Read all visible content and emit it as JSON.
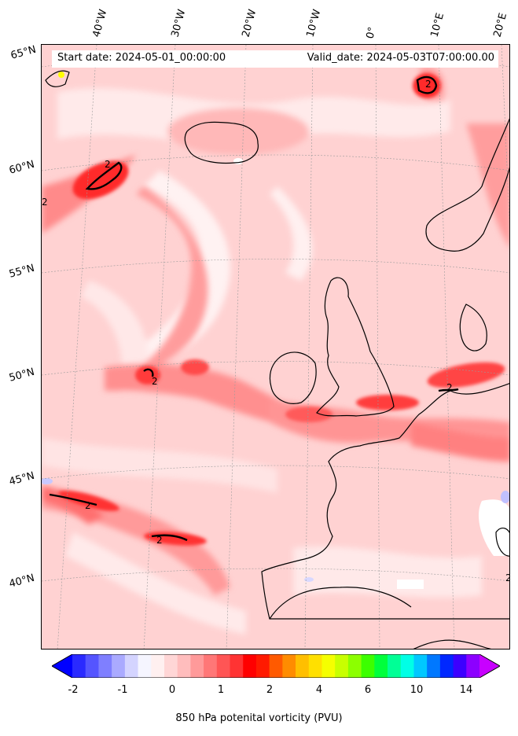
{
  "map": {
    "start_date": "Start date: 2024-05-01_00:00:00",
    "valid_date": "Valid_date: 2024-05-03T07:00:00.00",
    "lon_labels": [
      "40°W",
      "30°W",
      "20°W",
      "10°W",
      "0°",
      "10°E",
      "20°E"
    ],
    "lat_labels": [
      "65°N",
      "60°N",
      "55°N",
      "50°N",
      "45°N",
      "40°N"
    ],
    "contour_labels": [
      "2",
      "2",
      "2",
      "2",
      "2",
      "2",
      "2",
      "2"
    ],
    "colorbar": {
      "label": "850 hPa potenital vorticity (PVU)",
      "ticks": [
        "-2",
        "-1",
        "0",
        "1",
        "2",
        "4",
        "6",
        "10",
        "14"
      ],
      "colors": [
        "#0000ff",
        "#2a2aff",
        "#5555ff",
        "#7f7fff",
        "#aaaaff",
        "#d4d4ff",
        "#f5f5ff",
        "#fff0f0",
        "#ffd6d6",
        "#ffbdbd",
        "#ff9a9a",
        "#ff7777",
        "#ff5555",
        "#ff3333",
        "#ff0000",
        "#ff1a00",
        "#ff5a00",
        "#ff8c00",
        "#ffbf00",
        "#ffe000",
        "#f5ff00",
        "#c8ff00",
        "#8cff00",
        "#3cff00",
        "#00ff3c",
        "#00ff96",
        "#00ffe6",
        "#00c8ff",
        "#0078ff",
        "#0028ff",
        "#3c00ff",
        "#8c00ff",
        "#c800ff"
      ]
    }
  }
}
